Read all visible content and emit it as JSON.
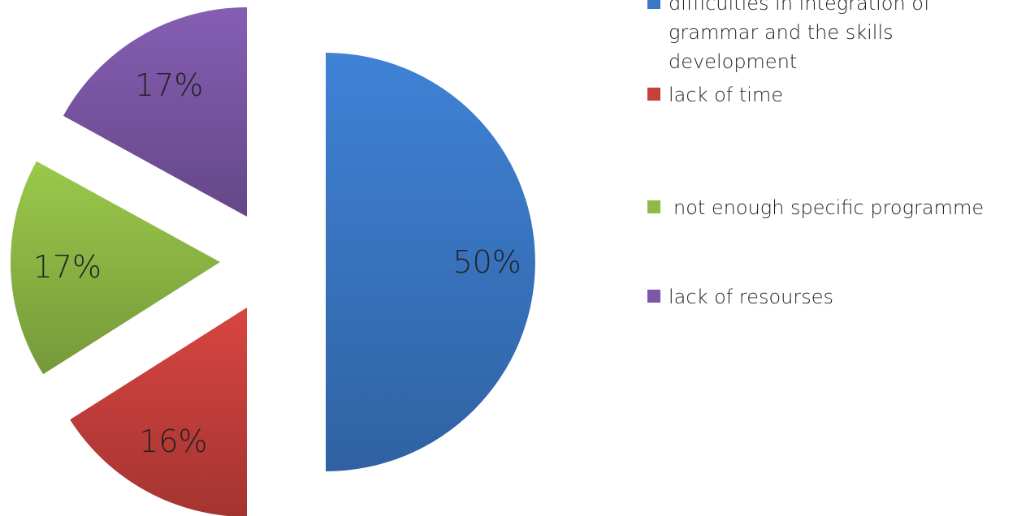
{
  "chart_data": {
    "type": "pie",
    "slices": [
      {
        "label": "difficulties in integration of grammar and the skills development",
        "value": 50,
        "display": "50%",
        "color": "#3a78c6"
      },
      {
        "label": "lack of time",
        "value": 16,
        "display": "16%",
        "color": "#c8403c"
      },
      {
        "label": "not enough specific programme",
        "value": 17,
        "display": "17%",
        "color": "#8fba45"
      },
      {
        "label": "lack of resourses",
        "value": 17,
        "display": "17%",
        "color": "#7b57a6"
      }
    ],
    "legend_position": "right",
    "exploded": true
  }
}
